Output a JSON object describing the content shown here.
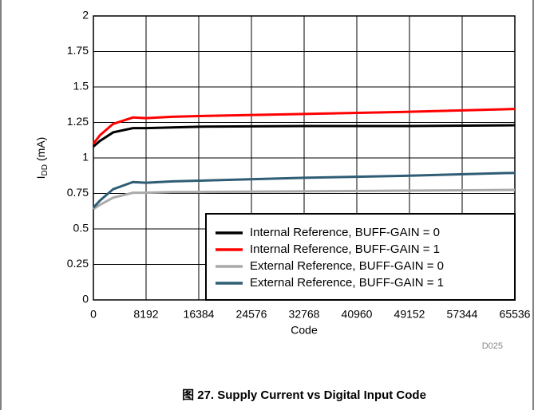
{
  "chart_data": {
    "type": "line",
    "caption": "图 27. Supply Current vs Digital Input Code",
    "x_label": "Code",
    "y_label": {
      "main": "I",
      "sub": "DD",
      "unit": "(mA)"
    },
    "note": "D025",
    "xlim": [
      0,
      65536
    ],
    "xticks": [
      0,
      8192,
      16384,
      24576,
      32768,
      40960,
      49152,
      57344,
      65536
    ],
    "ylim": [
      0,
      2
    ],
    "yticks": [
      0,
      0.25,
      0.5,
      0.75,
      1,
      1.25,
      1.5,
      1.75,
      2
    ],
    "grid": true,
    "legend": "lower right",
    "x": [
      0,
      1024,
      3072,
      6144,
      8192,
      12288,
      16384,
      32768,
      49152,
      65536
    ],
    "series": [
      {
        "name": "Internal Reference, BUFF-GAIN = 0",
        "color": "#000000",
        "values": [
          1.08,
          1.12,
          1.18,
          1.21,
          1.21,
          1.215,
          1.22,
          1.225,
          1.225,
          1.23
        ]
      },
      {
        "name": "Internal Reference, BUFF-GAIN = 1",
        "color": "#ff0000",
        "values": [
          1.1,
          1.16,
          1.24,
          1.285,
          1.28,
          1.29,
          1.295,
          1.31,
          1.325,
          1.345
        ]
      },
      {
        "name": "External Reference, BUFF-GAIN = 0",
        "color": "#aaaaaa",
        "values": [
          0.64,
          0.67,
          0.72,
          0.755,
          0.755,
          0.76,
          0.76,
          0.765,
          0.77,
          0.775
        ]
      },
      {
        "name": "External Reference, BUFF-GAIN = 1",
        "color": "#2f5d75",
        "values": [
          0.65,
          0.7,
          0.78,
          0.83,
          0.825,
          0.835,
          0.84,
          0.86,
          0.875,
          0.895
        ]
      }
    ]
  }
}
